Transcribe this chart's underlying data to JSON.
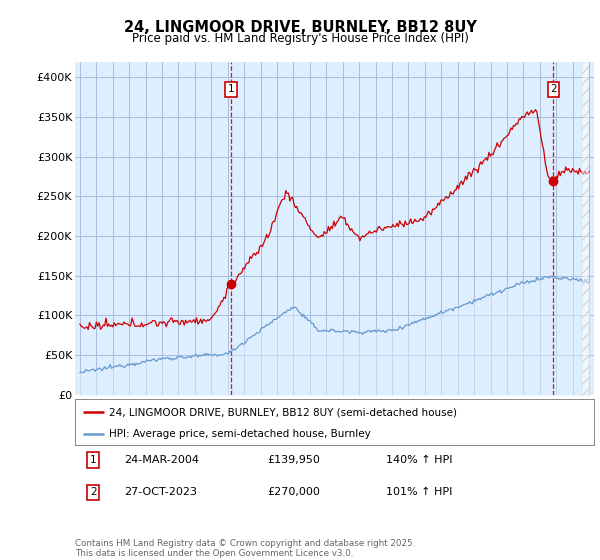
{
  "title1": "24, LINGMOOR DRIVE, BURNLEY, BB12 8UY",
  "title2": "Price paid vs. HM Land Registry's House Price Index (HPI)",
  "legend_label1": "24, LINGMOOR DRIVE, BURNLEY, BB12 8UY (semi-detached house)",
  "legend_label2": "HPI: Average price, semi-detached house, Burnley",
  "annotation1_date": "24-MAR-2004",
  "annotation1_price": "£139,950",
  "annotation1_hpi": "140% ↑ HPI",
  "annotation2_date": "27-OCT-2023",
  "annotation2_price": "£270,000",
  "annotation2_hpi": "101% ↑ HPI",
  "footer": "Contains HM Land Registry data © Crown copyright and database right 2025.\nThis data is licensed under the Open Government Licence v3.0.",
  "line1_color": "#cc0000",
  "line2_color": "#6699cc",
  "fill_color": "#ddeeff",
  "background_color": "#ffffff",
  "plot_bg_color": "#ddeeff",
  "grid_color": "#aabbdd",
  "vline_color": "#cc0000",
  "ylim_min": 0,
  "ylim_max": 420000,
  "xlim_min": 1994.7,
  "xlim_max": 2026.3,
  "sale1_x": 2004.22,
  "sale1_y": 139950,
  "sale2_x": 2023.83,
  "sale2_y": 270000,
  "yticks": [
    0,
    50000,
    100000,
    150000,
    200000,
    250000,
    300000,
    350000,
    400000
  ],
  "ytick_labels": [
    "£0",
    "£50K",
    "£100K",
    "£150K",
    "£200K",
    "£250K",
    "£300K",
    "£350K",
    "£400K"
  ],
  "xticks": [
    1995,
    1996,
    1997,
    1998,
    1999,
    2000,
    2001,
    2002,
    2003,
    2004,
    2005,
    2006,
    2007,
    2008,
    2009,
    2010,
    2011,
    2012,
    2013,
    2014,
    2015,
    2016,
    2017,
    2018,
    2019,
    2020,
    2021,
    2022,
    2023,
    2024,
    2025,
    2026
  ]
}
